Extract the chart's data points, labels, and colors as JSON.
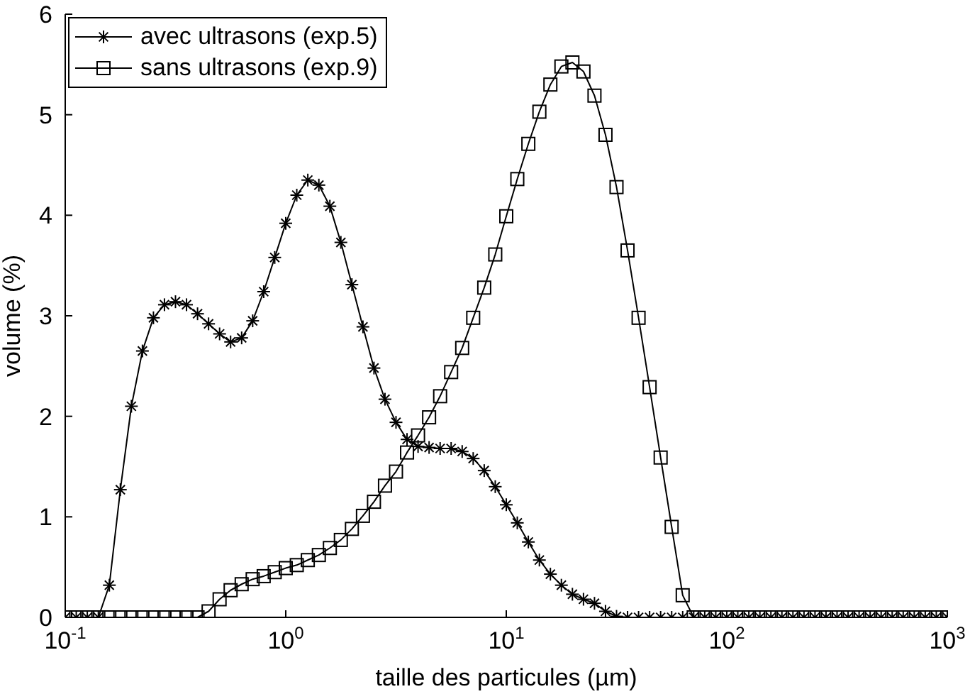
{
  "chart_data": {
    "type": "line",
    "xlabel": "taille des particules (µm)",
    "ylabel": "volume (%)",
    "log": "x",
    "xlim": [
      0.1,
      1000
    ],
    "ylim": [
      0,
      6
    ],
    "xticks": [
      {
        "value": 0.1,
        "label": "10$^{-1}$"
      },
      {
        "value": 1,
        "label": "10$^{0}$"
      },
      {
        "value": 10,
        "label": "10$^{1}$"
      },
      {
        "value": 100,
        "label": "10$^{2}$"
      },
      {
        "value": 1000,
        "label": "10$^{3}$"
      }
    ],
    "yticks": [
      0,
      1,
      2,
      3,
      4,
      5,
      6
    ],
    "grid": false,
    "legend": "top left",
    "line_style": "solid",
    "x": [
      0.1,
      0.1122,
      0.1259,
      0.1413,
      0.1585,
      0.1778,
      0.1995,
      0.2239,
      0.2512,
      0.2818,
      0.3162,
      0.3548,
      0.3981,
      0.4467,
      0.5012,
      0.5623,
      0.631,
      0.7079,
      0.7943,
      0.8913,
      1,
      1.122,
      1.259,
      1.413,
      1.585,
      1.778,
      1.995,
      2.239,
      2.512,
      2.818,
      3.162,
      3.548,
      3.981,
      4.467,
      5.012,
      5.623,
      6.31,
      7.079,
      7.943,
      8.913,
      10,
      11.22,
      12.59,
      14.13,
      15.85,
      17.78,
      19.95,
      22.39,
      25.12,
      28.18,
      31.62,
      35.48,
      39.81,
      44.67,
      50.12,
      56.23,
      63.1,
      70.79,
      79.43,
      89.13,
      100,
      112.2,
      125.9,
      141.3,
      158.5,
      177.8,
      199.5,
      223.9,
      251.2,
      281.8,
      316.2,
      354.8,
      398.1,
      446.7,
      501.2,
      562.3,
      631,
      707.9,
      794.3,
      891.3,
      1000
    ],
    "series": [
      {
        "name": "avec ultrasons (exp.5)",
        "color": "#000000",
        "marker": "cross",
        "values": [
          0,
          0,
          0,
          0,
          0.32,
          1.27,
          2.1,
          2.65,
          2.98,
          3.11,
          3.14,
          3.11,
          3.02,
          2.92,
          2.82,
          2.74,
          2.78,
          2.95,
          3.24,
          3.58,
          3.92,
          4.2,
          4.35,
          4.3,
          4.09,
          3.73,
          3.31,
          2.89,
          2.48,
          2.17,
          1.94,
          1.77,
          1.7,
          1.69,
          1.68,
          1.68,
          1.65,
          1.58,
          1.46,
          1.3,
          1.12,
          0.94,
          0.75,
          0.57,
          0.43,
          0.32,
          0.23,
          0.18,
          0.14,
          0.06,
          0.01,
          0,
          0,
          0,
          0,
          0,
          0,
          0,
          0,
          0,
          0,
          0,
          0,
          0,
          0,
          0,
          0,
          0,
          0,
          0,
          0,
          0,
          0,
          0,
          0,
          0,
          0,
          0,
          0,
          0,
          0
        ]
      },
      {
        "name": "sans ultrasons (exp.9)",
        "color": "#000000",
        "marker": "square",
        "values": [
          0,
          0,
          0,
          0,
          0,
          0,
          0,
          0,
          0,
          0,
          0,
          0,
          0,
          0.06,
          0.18,
          0.27,
          0.33,
          0.38,
          0.41,
          0.45,
          0.49,
          0.52,
          0.57,
          0.62,
          0.69,
          0.77,
          0.88,
          1.01,
          1.15,
          1.31,
          1.45,
          1.64,
          1.81,
          1.99,
          2.2,
          2.44,
          2.68,
          2.98,
          3.28,
          3.61,
          3.99,
          4.36,
          4.71,
          5.03,
          5.3,
          5.48,
          5.52,
          5.43,
          5.19,
          4.8,
          4.28,
          3.65,
          2.98,
          2.29,
          1.59,
          0.9,
          0.22,
          0,
          0,
          0,
          0,
          0,
          0,
          0,
          0,
          0,
          0,
          0,
          0,
          0,
          0,
          0,
          0,
          0,
          0,
          0,
          0,
          0,
          0,
          0,
          0
        ]
      }
    ]
  }
}
